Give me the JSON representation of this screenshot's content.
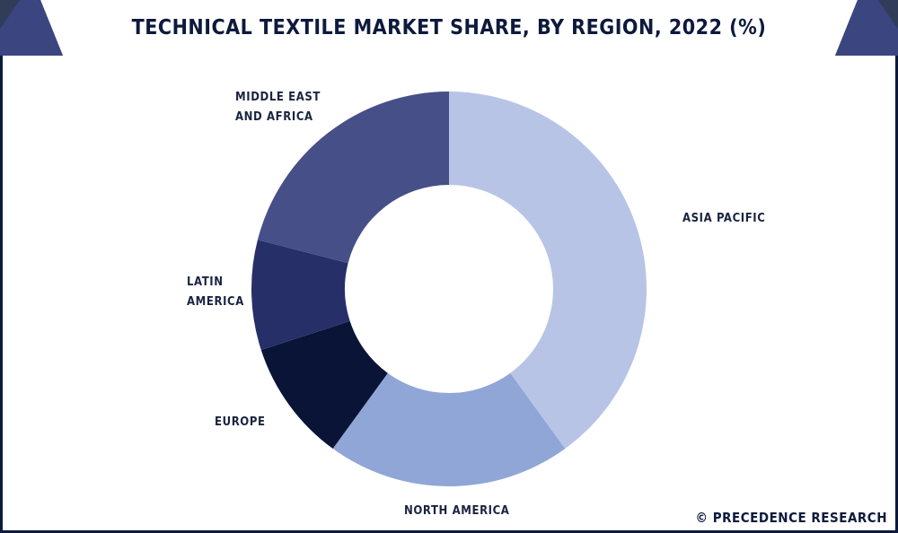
{
  "header": {
    "title": "TECHNICAL TEXTILE MARKET SHARE, BY REGION, 2022 (%)"
  },
  "footer": {
    "copyright": "© PRECEDENCE RESEARCH"
  },
  "chart_data": {
    "type": "pie",
    "title": "TECHNICAL TEXTILE MARKET SHARE, BY REGION, 2022 (%)",
    "categories": [
      "ASIA PACIFIC",
      "NORTH AMERICA",
      "EUROPE",
      "LATIN AMERICA",
      "MIDDLE EAST AND AFRICA"
    ],
    "values": [
      40,
      20,
      10,
      9,
      21
    ],
    "colors": [
      "#b8c4e6",
      "#90a6d6",
      "#0a1436",
      "#262f68",
      "#464f88"
    ],
    "labels": {
      "ASIA PACIFIC": "ASIA PACIFIC",
      "NORTH AMERICA": "NORTH AMERICA",
      "EUROPE": "EUROPE",
      "LATIN AMERICA": "LATIN\nAMERICA",
      "MIDDLE EAST AND AFRICA": "MIDDLE EAST\nAND AFRICA"
    },
    "donut": true
  }
}
